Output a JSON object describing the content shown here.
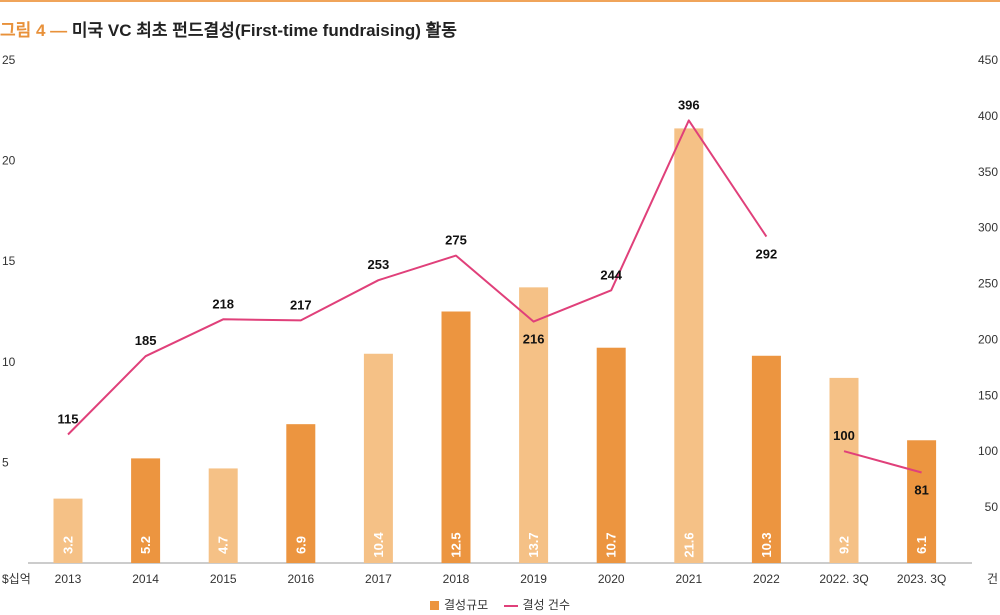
{
  "title": {
    "figure_label": "그림 4 —",
    "text": "미국 VC 최초 펀드결성(First-time fundraising) 활동"
  },
  "colors": {
    "bar_dark": "#ec9540",
    "bar_light": "#f5c186",
    "line": "#e0407a",
    "accent": "#e8913a"
  },
  "chart_data": {
    "type": "bar",
    "categories": [
      "2013",
      "2014",
      "2015",
      "2016",
      "2017",
      "2018",
      "2019",
      "2020",
      "2021",
      "2022",
      "2022. 3Q",
      "2023. 3Q"
    ],
    "left_axis": {
      "unit_label": "$십억",
      "ticks": [
        "5",
        "10",
        "15",
        "20",
        "25"
      ],
      "ylim": [
        0,
        25
      ]
    },
    "right_axis": {
      "unit_label": "건",
      "ticks": [
        "50",
        "100",
        "150",
        "200",
        "250",
        "300",
        "350",
        "400",
        "450"
      ],
      "ylim": [
        0,
        450
      ]
    },
    "series": [
      {
        "name": "결성규모",
        "type": "bar",
        "axis": "left",
        "values": [
          3.2,
          5.2,
          4.7,
          6.9,
          10.4,
          12.5,
          13.7,
          10.7,
          21.6,
          10.3,
          9.2,
          6.1
        ],
        "labels": [
          "3.2",
          "5.2",
          "4.7",
          "6.9",
          "10.4",
          "12.5",
          "13.7",
          "10.7",
          "21.6",
          "10.3",
          "9.2",
          "6.1"
        ],
        "shade": [
          "light",
          "dark",
          "light",
          "dark",
          "light",
          "dark",
          "light",
          "dark",
          "light",
          "dark",
          "light",
          "dark"
        ]
      },
      {
        "name": "결성 건수",
        "type": "line",
        "axis": "right",
        "segments": [
          [
            0,
            1,
            2,
            3,
            4,
            5,
            6,
            7,
            8,
            9
          ],
          [
            10,
            11
          ]
        ],
        "values": [
          115,
          185,
          218,
          217,
          253,
          275,
          216,
          244,
          396,
          292,
          100,
          81
        ],
        "labels": [
          "115",
          "185",
          "218",
          "217",
          "253",
          "275",
          "216",
          "244",
          "396",
          "292",
          "100",
          "81"
        ]
      }
    ],
    "grid": false,
    "legend_position": "bottom"
  }
}
